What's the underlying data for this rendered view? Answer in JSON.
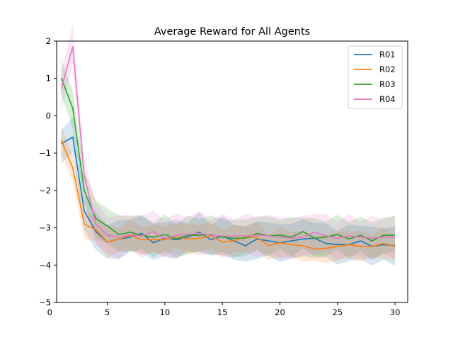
{
  "chart_data": {
    "type": "line",
    "title": "Average Reward for All Agents",
    "xlabel": "",
    "ylabel": "",
    "xlim": [
      0.6,
      31.1
    ],
    "ylim": [
      -5,
      2
    ],
    "xticks": [
      0,
      5,
      10,
      15,
      20,
      25,
      30
    ],
    "yticks": [
      -5,
      -4,
      -3,
      -2,
      -1,
      0,
      1,
      2
    ],
    "grid": false,
    "legend_position": "top-right",
    "x": [
      1,
      2,
      3,
      4,
      5,
      6,
      7,
      8,
      9,
      10,
      11,
      12,
      13,
      14,
      15,
      16,
      17,
      18,
      19,
      20,
      21,
      22,
      23,
      24,
      25,
      26,
      27,
      28,
      29,
      30
    ],
    "series": [
      {
        "name": "R01",
        "color": "#1f77b4",
        "values": [
          -0.75,
          -0.57,
          -2.55,
          -3.1,
          -3.38,
          -3.3,
          -3.25,
          -3.15,
          -3.4,
          -3.28,
          -3.32,
          -3.25,
          -3.12,
          -3.32,
          -3.22,
          -3.35,
          -3.48,
          -3.3,
          -3.35,
          -3.4,
          -3.35,
          -3.3,
          -3.28,
          -3.42,
          -3.45,
          -3.45,
          -3.35,
          -3.5,
          -3.45,
          -3.48
        ],
        "band": 0.45
      },
      {
        "name": "R02",
        "color": "#ff7f0e",
        "values": [
          -0.65,
          -1.4,
          -2.9,
          -3.05,
          -3.38,
          -3.3,
          -3.2,
          -3.32,
          -3.32,
          -3.32,
          -3.25,
          -3.3,
          -3.28,
          -3.22,
          -3.38,
          -3.35,
          -3.25,
          -3.25,
          -3.48,
          -3.4,
          -3.45,
          -3.48,
          -3.57,
          -3.55,
          -3.5,
          -3.45,
          -3.5,
          -3.5,
          -3.42,
          -3.5
        ],
        "band": 0.35
      },
      {
        "name": "R03",
        "color": "#2ca02c",
        "values": [
          1.02,
          0.2,
          -2.0,
          -2.75,
          -2.95,
          -3.18,
          -3.12,
          -3.2,
          -3.25,
          -3.18,
          -3.3,
          -3.2,
          -3.2,
          -3.18,
          -3.25,
          -3.28,
          -3.28,
          -3.15,
          -3.22,
          -3.2,
          -3.25,
          -3.1,
          -3.28,
          -3.25,
          -3.18,
          -3.3,
          -3.2,
          -3.35,
          -3.2,
          -3.2
        ],
        "band": 0.45
      },
      {
        "name": "R04",
        "color": "#e377c2",
        "values": [
          0.72,
          1.85,
          -1.6,
          -2.9,
          -3.2,
          -3.25,
          -3.18,
          -3.22,
          -3.1,
          -3.3,
          -3.2,
          -3.18,
          -3.15,
          -3.2,
          -3.22,
          -3.22,
          -3.22,
          -3.2,
          -3.22,
          -3.25,
          -3.28,
          -3.25,
          -3.12,
          -3.22,
          -3.28,
          -3.22,
          -3.25,
          -3.28,
          -3.25,
          -3.25
        ],
        "band": 0.5
      }
    ]
  }
}
